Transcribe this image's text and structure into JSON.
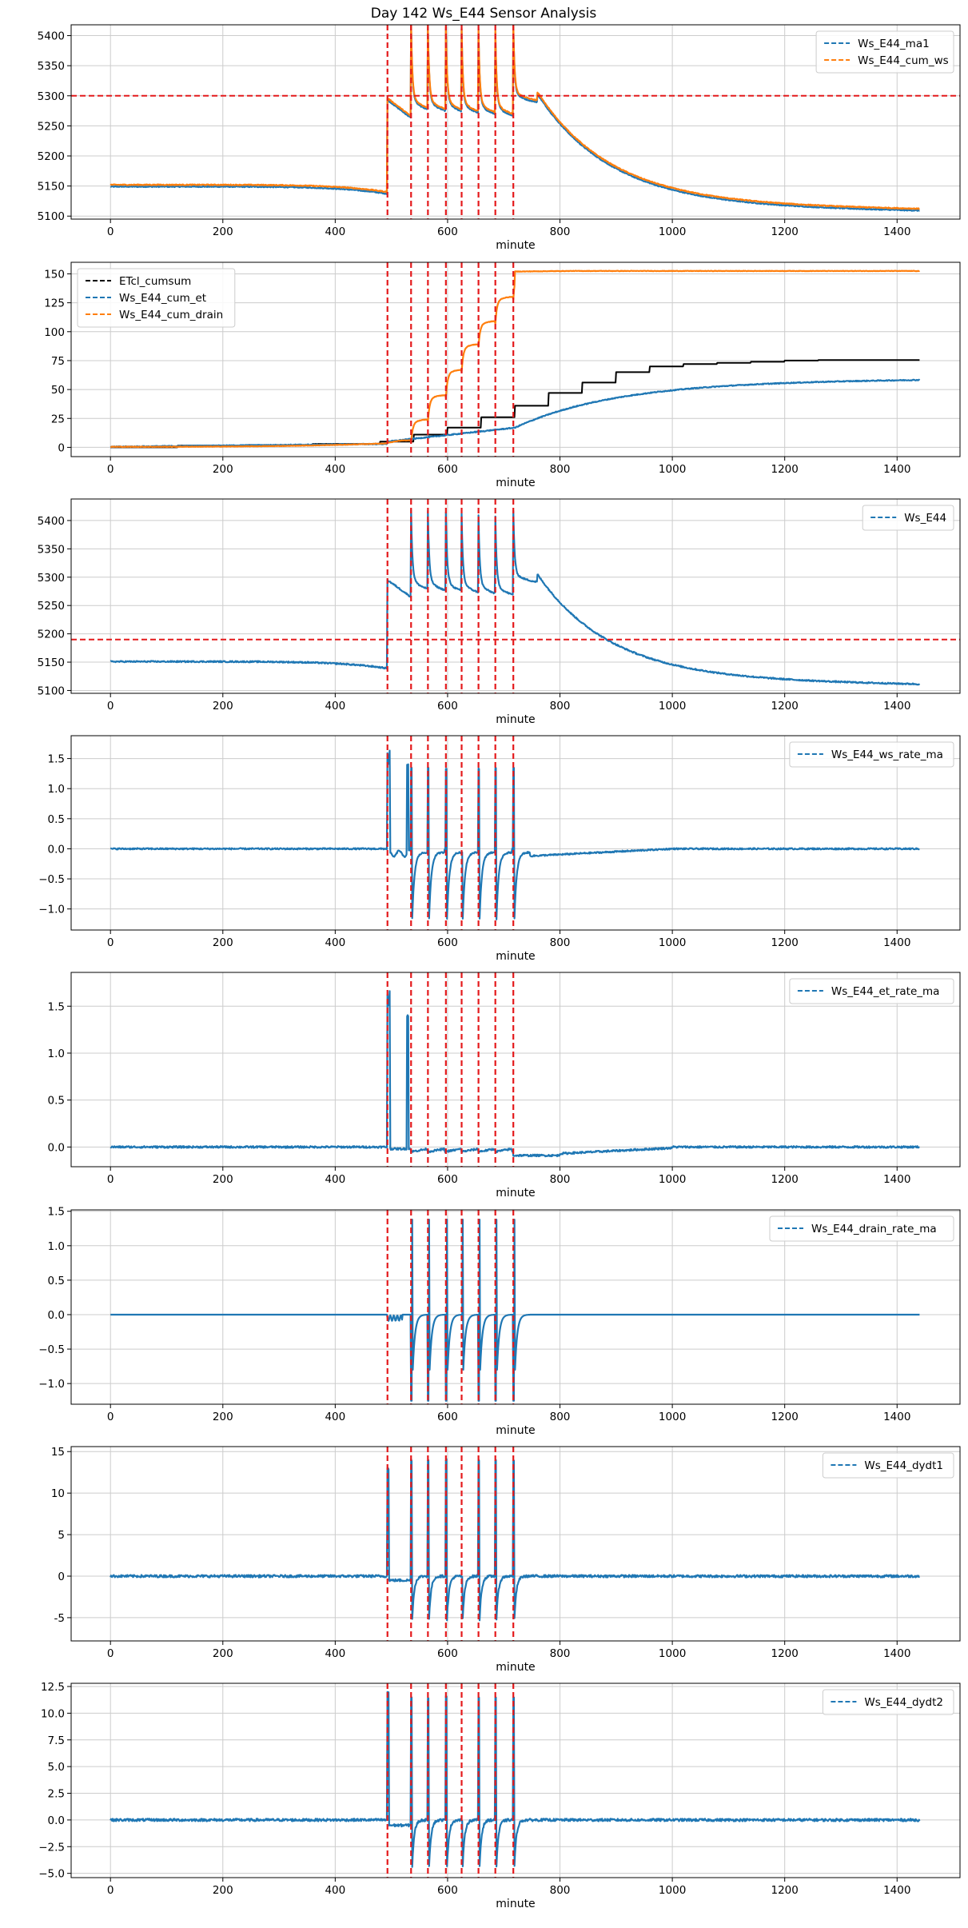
{
  "figure": {
    "title": "Day 142 Ws_E44 Sensor Analysis",
    "event_lines": [
      493,
      535,
      565,
      597,
      625,
      655,
      685,
      717
    ],
    "colors": {
      "blue": "#1f77b4",
      "orange": "#ff7f0e",
      "black": "#000000",
      "red": "#e41a1c",
      "grid": "#cccccc"
    }
  },
  "chart_data": [
    {
      "type": "line",
      "name": "ws-chart",
      "xlabel": "minute",
      "xlim": [
        -70,
        1512
      ],
      "ylim": [
        5095,
        5418
      ],
      "xticks": [
        0,
        200,
        400,
        600,
        800,
        1000,
        1200,
        1400
      ],
      "yticks": [
        5100,
        5150,
        5200,
        5250,
        5300,
        5350,
        5400
      ],
      "hline": 5300,
      "legend": "top-right",
      "series": [
        {
          "name": "Ws_E44_ma1",
          "color": "#1f77b4",
          "base": "ws",
          "offset": -2,
          "noise": 0.8
        },
        {
          "name": "Ws_E44_cum_ws",
          "color": "#ff7f0e",
          "base": "ws",
          "offset": 1,
          "noise": 0.8
        }
      ]
    },
    {
      "type": "line",
      "name": "cum-chart",
      "xlabel": "minute",
      "xlim": [
        -70,
        1512
      ],
      "ylim": [
        -8,
        160
      ],
      "xticks": [
        0,
        200,
        400,
        600,
        800,
        1000,
        1200,
        1400
      ],
      "yticks": [
        0,
        25,
        50,
        75,
        100,
        125,
        150
      ],
      "legend": "top-left",
      "series": [
        {
          "name": "ETcl_cumsum",
          "color": "#000000",
          "base": "etcl",
          "offset": 0,
          "noise": 0
        },
        {
          "name": "Ws_E44_cum_et",
          "color": "#1f77b4",
          "base": "cumet",
          "offset": 0,
          "noise": 0.4
        },
        {
          "name": "Ws_E44_cum_drain",
          "color": "#ff7f0e",
          "base": "drain",
          "offset": 0,
          "noise": 0.2
        }
      ]
    },
    {
      "type": "line",
      "name": "ws-raw-chart",
      "xlabel": "minute",
      "xlim": [
        -70,
        1512
      ],
      "ylim": [
        5095,
        5438
      ],
      "xticks": [
        0,
        200,
        400,
        600,
        800,
        1000,
        1200,
        1400
      ],
      "yticks": [
        5100,
        5150,
        5200,
        5250,
        5300,
        5350,
        5400
      ],
      "hline": 5190,
      "legend": "top-right",
      "series": [
        {
          "name": "Ws_E44",
          "color": "#1f77b4",
          "base": "ws",
          "offset": 0,
          "noise": 1.2
        }
      ]
    },
    {
      "type": "line",
      "name": "ws-rate-chart",
      "xlabel": "minute",
      "xlim": [
        -70,
        1512
      ],
      "ylim": [
        -1.35,
        1.88
      ],
      "xticks": [
        0,
        200,
        400,
        600,
        800,
        1000,
        1200,
        1400
      ],
      "yticks": [
        -1.0,
        -0.5,
        0.0,
        0.5,
        1.0,
        1.5
      ],
      "legend": "top-right",
      "series": [
        {
          "name": "Ws_E44_ws_rate_ma",
          "color": "#1f77b4",
          "base": "wsrate",
          "offset": 0,
          "noise": 0.012
        }
      ]
    },
    {
      "type": "line",
      "name": "et-rate-chart",
      "xlabel": "minute",
      "xlim": [
        -70,
        1512
      ],
      "ylim": [
        -0.21,
        1.86
      ],
      "xticks": [
        0,
        200,
        400,
        600,
        800,
        1000,
        1200,
        1400
      ],
      "yticks": [
        0.0,
        0.5,
        1.0,
        1.5
      ],
      "legend": "top-right",
      "series": [
        {
          "name": "Ws_E44_et_rate_ma",
          "color": "#1f77b4",
          "base": "etrate",
          "offset": 0,
          "noise": 0.01
        }
      ]
    },
    {
      "type": "line",
      "name": "drain-rate-chart",
      "xlabel": "minute",
      "xlim": [
        -70,
        1512
      ],
      "ylim": [
        -1.3,
        1.52
      ],
      "xticks": [
        0,
        200,
        400,
        600,
        800,
        1000,
        1200,
        1400
      ],
      "yticks": [
        -1.0,
        -0.5,
        0.0,
        0.5,
        1.0,
        1.5
      ],
      "legend": "top-right",
      "series": [
        {
          "name": "Ws_E44_drain_rate_ma",
          "color": "#1f77b4",
          "base": "drainrate",
          "offset": 0,
          "noise": 0
        }
      ]
    },
    {
      "type": "line",
      "name": "dydt1-chart",
      "xlabel": "minute",
      "xlim": [
        -70,
        1512
      ],
      "ylim": [
        -7.8,
        15.6
      ],
      "xticks": [
        0,
        200,
        400,
        600,
        800,
        1000,
        1200,
        1400
      ],
      "yticks": [
        -5,
        0,
        5,
        10,
        15
      ],
      "legend": "top-right",
      "series": [
        {
          "name": "Ws_E44_dydt1",
          "color": "#1f77b4",
          "base": "dydt1",
          "offset": 0,
          "noise": 0.15
        }
      ]
    },
    {
      "type": "line",
      "name": "dydt2-chart",
      "xlabel": "minute",
      "xlim": [
        -70,
        1512
      ],
      "ylim": [
        -5.4,
        12.8
      ],
      "xticks": [
        0,
        200,
        400,
        600,
        800,
        1000,
        1200,
        1400
      ],
      "yticks": [
        -5.0,
        -2.5,
        0.0,
        2.5,
        5.0,
        7.5,
        10.0,
        12.5
      ],
      "legend": "top-right",
      "series": [
        {
          "name": "Ws_E44_dydt2",
          "color": "#1f77b4",
          "base": "dydt2",
          "offset": 0,
          "noise": 0.12
        }
      ]
    }
  ]
}
